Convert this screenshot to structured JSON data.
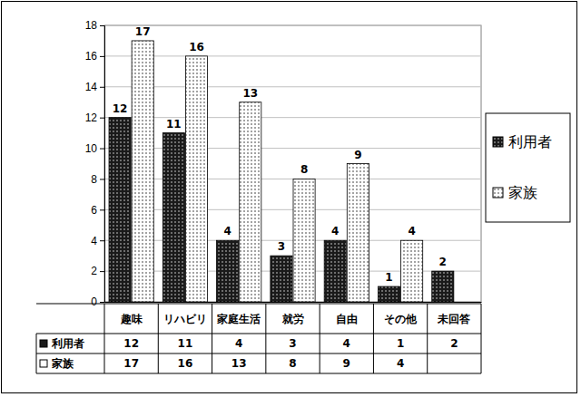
{
  "chart_data": {
    "type": "bar",
    "categories": [
      "趣味",
      "リハビリ",
      "家庭生活",
      "就労",
      "自由",
      "その他",
      "未回答"
    ],
    "series": [
      {
        "name": "利用者",
        "color": "#1a1a1a",
        "values": [
          12,
          11,
          4,
          3,
          4,
          1,
          2
        ]
      },
      {
        "name": "家族",
        "color": "#ffffff",
        "values": [
          17,
          16,
          13,
          8,
          9,
          4,
          null
        ]
      }
    ],
    "ylim": [
      0,
      18
    ],
    "yticks": [
      0,
      2,
      4,
      6,
      8,
      10,
      12,
      14,
      16,
      18
    ],
    "grid": true,
    "legend": "right",
    "data_labels": true
  }
}
